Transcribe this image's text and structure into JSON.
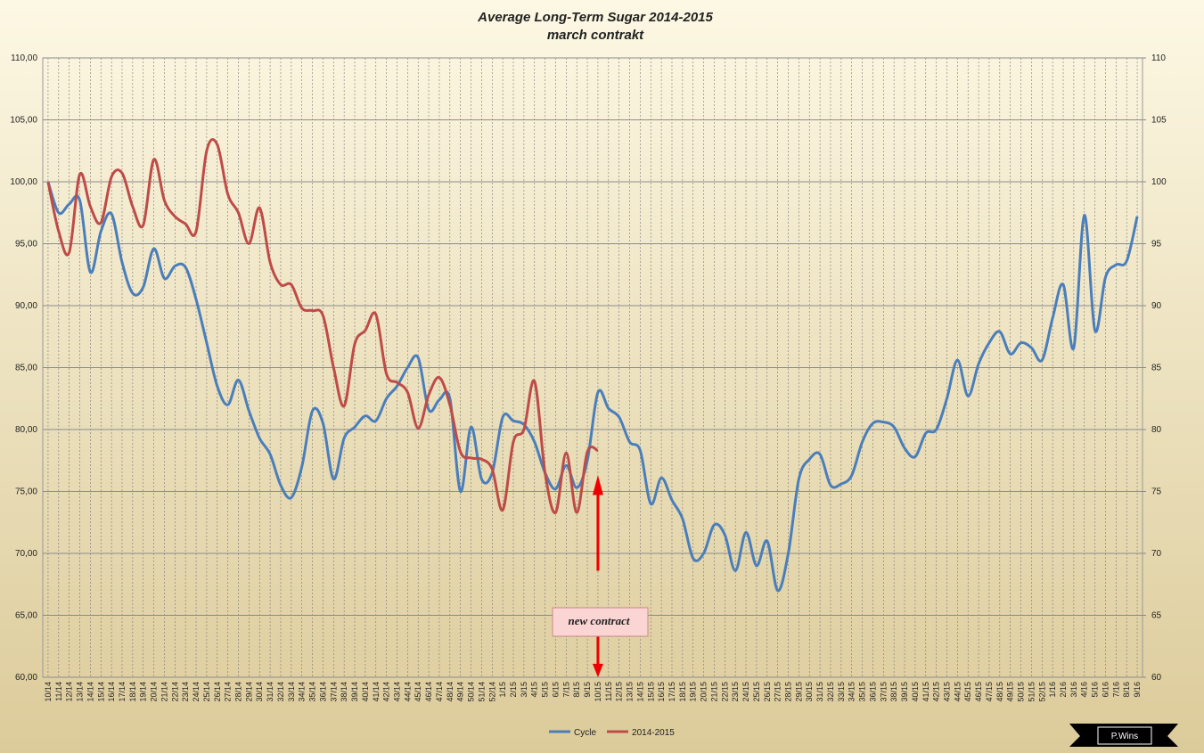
{
  "chart_data": {
    "type": "line",
    "title": "Average Long-Term Sugar 2014-2015",
    "subtitle": "march contrakt",
    "annotation": "new contract",
    "watermark": "P.Wins",
    "categories": [
      "10/14",
      "11/14",
      "12/14",
      "13/14",
      "14/14",
      "15/14",
      "16/14",
      "17/14",
      "18/14",
      "19/14",
      "20/14",
      "21/14",
      "22/14",
      "23/14",
      "24/14",
      "25/14",
      "26/14",
      "27/14",
      "28/14",
      "29/14",
      "30/14",
      "31/14",
      "32/14",
      "33/14",
      "34/14",
      "35/14",
      "36/14",
      "37/14",
      "38/14",
      "39/14",
      "40/14",
      "41/14",
      "42/14",
      "43/14",
      "44/14",
      "45/14",
      "46/14",
      "47/14",
      "48/14",
      "49/14",
      "50/14",
      "51/14",
      "52/14",
      "1/15",
      "2/15",
      "3/15",
      "4/15",
      "5/15",
      "6/15",
      "7/15",
      "8/15",
      "9/15",
      "10/15",
      "11/15",
      "12/15",
      "13/15",
      "14/15",
      "15/15",
      "16/15",
      "17/15",
      "18/15",
      "19/15",
      "20/15",
      "21/15",
      "22/15",
      "23/15",
      "24/15",
      "25/15",
      "26/15",
      "27/15",
      "28/15",
      "29/15",
      "30/15",
      "31/15",
      "32/15",
      "33/15",
      "34/15",
      "35/15",
      "36/15",
      "37/15",
      "38/15",
      "39/15",
      "40/15",
      "41/15",
      "42/15",
      "43/15",
      "44/15",
      "45/15",
      "46/15",
      "47/15",
      "48/15",
      "49/15",
      "50/15",
      "51/15",
      "52/15",
      "1/16",
      "2/16",
      "3/16",
      "4/16",
      "5/16",
      "6/16",
      "7/16",
      "8/16",
      "9/16"
    ],
    "series": [
      {
        "name": "Cycle",
        "color": "#4a7ebb",
        "values": [
          100,
          97.5,
          98.2,
          98.5,
          92.7,
          96,
          97.4,
          93.5,
          91,
          91.5,
          94.6,
          92.2,
          93.2,
          93.1,
          90.5,
          87,
          83.5,
          82,
          84,
          81.5,
          79.3,
          78,
          75.5,
          74.5,
          77,
          81.5,
          80.5,
          76,
          79.3,
          80.2,
          81.1,
          80.7,
          82.5,
          83.5,
          85,
          85.8,
          81.6,
          82.4,
          82.5,
          75,
          80.2,
          76,
          76.5,
          81,
          80.7,
          80.4,
          79,
          76.5,
          75.2,
          77.1,
          75.3,
          77.5,
          83,
          81.7,
          81,
          79,
          78.3,
          74,
          76.1,
          74.3,
          72.8,
          69.6,
          70,
          72.3,
          71.5,
          68.6,
          71.7,
          69,
          71,
          67,
          70,
          76,
          77.6,
          78,
          75.5,
          75.6,
          76.3,
          79,
          80.5,
          80.6,
          80.2,
          78.5,
          77.8,
          79.7,
          80,
          82.5,
          85.6,
          82.7,
          85.3,
          87,
          87.9,
          86.1,
          87,
          86.6,
          85.6,
          89,
          91.7,
          86.6,
          97.3,
          88,
          92.3,
          93.3,
          93.6,
          97.2
        ]
      },
      {
        "name": "2014-2015",
        "color": "#be4b48",
        "values": [
          100,
          96,
          94.3,
          100.6,
          98,
          96.7,
          100.4,
          100.7,
          98,
          96.5,
          101.8,
          98.5,
          97.2,
          96.6,
          96,
          102.5,
          103,
          99,
          97.5,
          95,
          97.9,
          93.5,
          91.7,
          91.7,
          89.8,
          89.6,
          89.2,
          85,
          81.9,
          86.9,
          88,
          89.3,
          84.5,
          83.8,
          83,
          80.1,
          82.8,
          84.2,
          82,
          78.2,
          77.7,
          77.6,
          76.8,
          73.5,
          79,
          80,
          83.9,
          76.5,
          73.3,
          78.1,
          73.3,
          78.2,
          78.3,
          null,
          null,
          null,
          null,
          null,
          null,
          null,
          null,
          null,
          null,
          null,
          null,
          null,
          null,
          null,
          null,
          null,
          null,
          null,
          null,
          null,
          null,
          null,
          null,
          null,
          null,
          null,
          null,
          null,
          null,
          null,
          null,
          null,
          null,
          null,
          null,
          null,
          null,
          null,
          null,
          null,
          null,
          null,
          null,
          null,
          null,
          null,
          null,
          null,
          null,
          null
        ]
      }
    ],
    "ylim": [
      60,
      110
    ],
    "yticks": [
      {
        "value": 60,
        "label": "60,00"
      },
      {
        "value": 65,
        "label": "65,00"
      },
      {
        "value": 70,
        "label": "70,00"
      },
      {
        "value": 75,
        "label": "75,00"
      },
      {
        "value": 80,
        "label": "80,00"
      },
      {
        "value": 85,
        "label": "85,00"
      },
      {
        "value": 90,
        "label": "90,00"
      },
      {
        "value": 95,
        "label": "95,00"
      },
      {
        "value": 100,
        "label": "100,00"
      },
      {
        "value": 105,
        "label": "105,00"
      },
      {
        "value": 110,
        "label": "110,00"
      }
    ],
    "y2lim": [
      60,
      110
    ],
    "y2ticks": [
      60,
      65,
      70,
      75,
      80,
      85,
      90,
      95,
      100,
      105,
      110
    ],
    "grid": true,
    "legend": "bottom"
  }
}
